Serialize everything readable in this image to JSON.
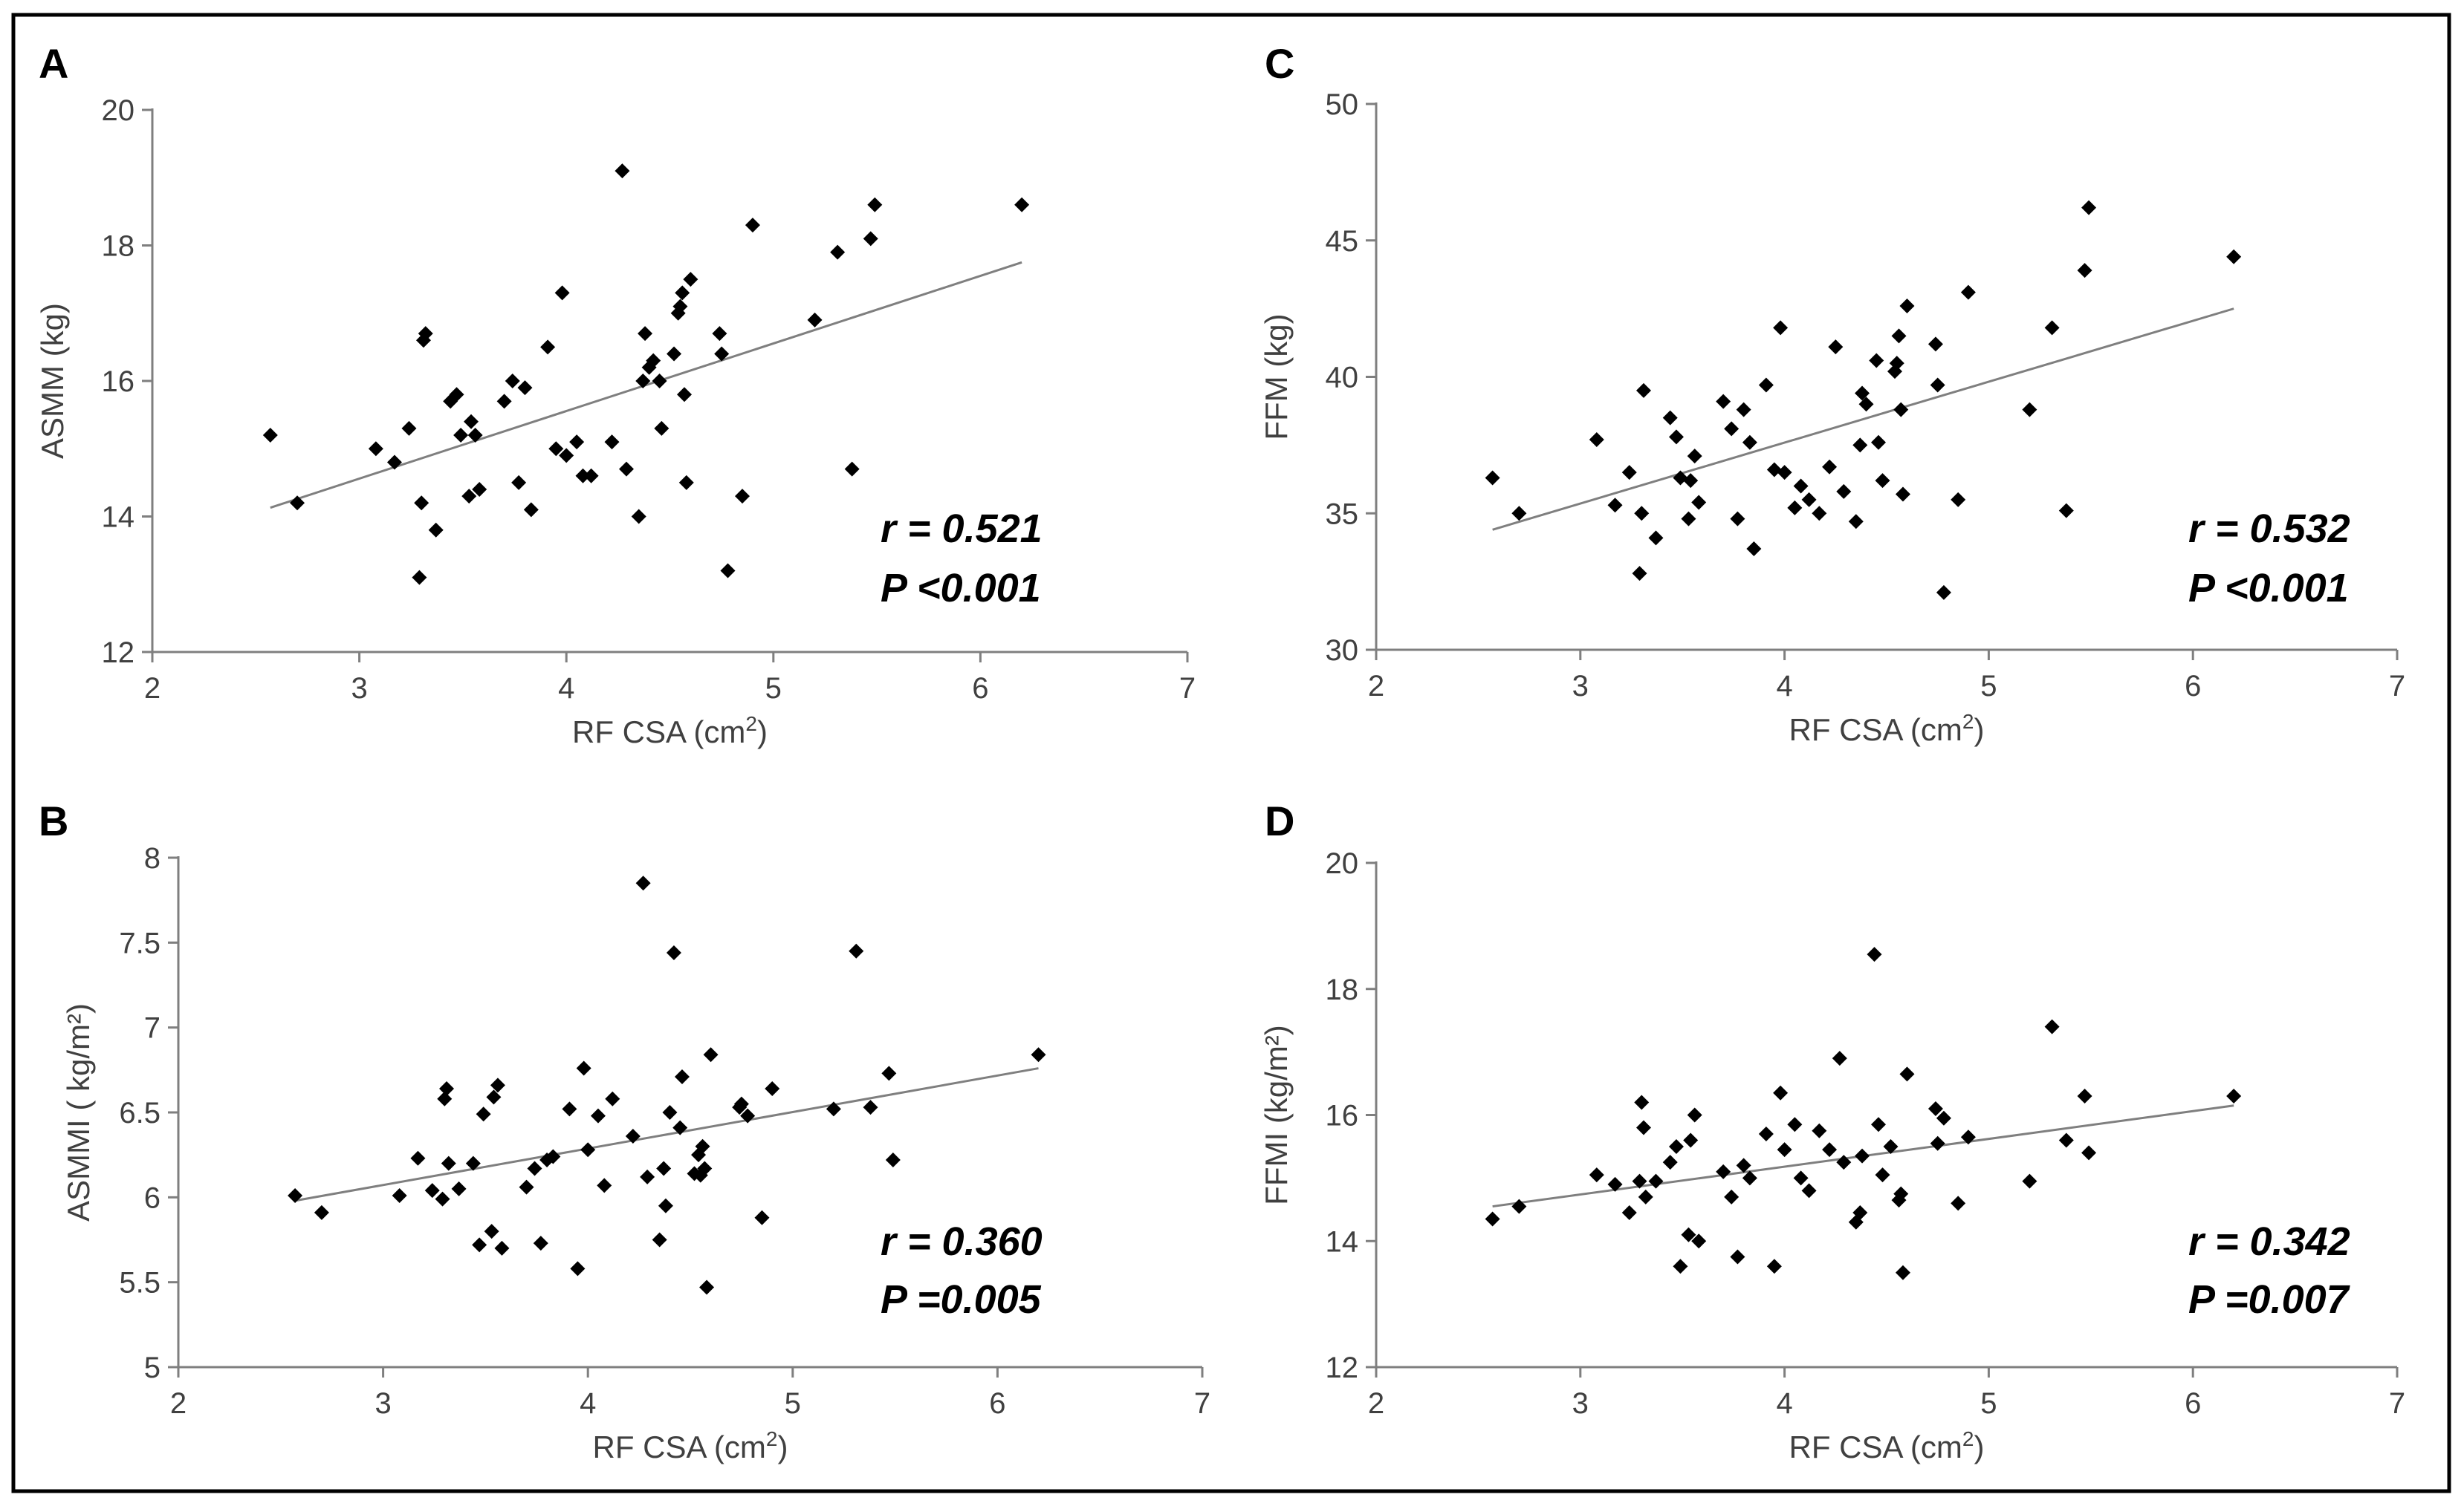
{
  "colors": {
    "axis": "#7f7f7f",
    "point": "#000000",
    "trend": "#7f7f7f",
    "text": "#404040",
    "frame": "#000000"
  },
  "chart_data": [
    {
      "panel": "A",
      "type": "scatter",
      "title": "",
      "xlabel_main": "RF CSA (cm",
      "xlabel_sup": "2",
      "xlabel_end": ")",
      "ylabel": "ASMM (kg)",
      "xlim": [
        2,
        7
      ],
      "ylim": [
        12,
        20
      ],
      "xticks": [
        "2",
        "3",
        "4",
        "5",
        "6",
        "7"
      ],
      "yticks": [
        "12",
        "14",
        "16",
        "18",
        "20"
      ],
      "trendline": {
        "x": [
          2.57,
          6.2
        ],
        "y": [
          14.13,
          17.75
        ]
      },
      "stats": {
        "r": "r = 0.521",
        "p": "P <0.001"
      },
      "points": [
        [
          2.57,
          15.2
        ],
        [
          2.7,
          14.2
        ],
        [
          3.08,
          15.0
        ],
        [
          3.17,
          14.8
        ],
        [
          3.24,
          15.3
        ],
        [
          3.29,
          13.1
        ],
        [
          3.3,
          14.2
        ],
        [
          3.31,
          16.6
        ],
        [
          3.32,
          16.7
        ],
        [
          3.37,
          13.8
        ],
        [
          3.44,
          15.7
        ],
        [
          3.47,
          15.8
        ],
        [
          3.49,
          15.2
        ],
        [
          3.53,
          14.3
        ],
        [
          3.54,
          15.4
        ],
        [
          3.56,
          15.2
        ],
        [
          3.58,
          14.4
        ],
        [
          3.7,
          15.7
        ],
        [
          3.74,
          16.0
        ],
        [
          3.77,
          14.5
        ],
        [
          3.8,
          15.9
        ],
        [
          3.83,
          14.1
        ],
        [
          3.91,
          16.5
        ],
        [
          3.95,
          15.0
        ],
        [
          3.98,
          17.3
        ],
        [
          4.0,
          14.9
        ],
        [
          4.05,
          15.1
        ],
        [
          4.08,
          14.6
        ],
        [
          4.12,
          14.6
        ],
        [
          4.22,
          15.1
        ],
        [
          4.27,
          19.1
        ],
        [
          4.29,
          14.7
        ],
        [
          4.35,
          14.0
        ],
        [
          4.37,
          16.0
        ],
        [
          4.38,
          16.7
        ],
        [
          4.4,
          16.2
        ],
        [
          4.42,
          16.3
        ],
        [
          4.45,
          16.0
        ],
        [
          4.46,
          15.3
        ],
        [
          4.52,
          16.4
        ],
        [
          4.54,
          17.0
        ],
        [
          4.55,
          17.1
        ],
        [
          4.56,
          17.3
        ],
        [
          4.57,
          15.8
        ],
        [
          4.58,
          14.5
        ],
        [
          4.6,
          17.5
        ],
        [
          4.74,
          16.7
        ],
        [
          4.75,
          16.4
        ],
        [
          4.78,
          13.2
        ],
        [
          4.85,
          14.3
        ],
        [
          4.9,
          18.3
        ],
        [
          5.2,
          16.9
        ],
        [
          5.31,
          17.9
        ],
        [
          5.38,
          14.7
        ],
        [
          5.47,
          18.1
        ],
        [
          5.49,
          18.6
        ],
        [
          6.2,
          18.6
        ]
      ]
    },
    {
      "panel": "B",
      "type": "scatter",
      "title": "",
      "xlabel_main": "RF CSA (cm",
      "xlabel_sup": "2",
      "xlabel_end": ")",
      "ylabel": "ASMMI ( kg/m²)",
      "xlim": [
        2,
        7
      ],
      "ylim": [
        5,
        8
      ],
      "xticks": [
        "2",
        "3",
        "4",
        "5",
        "6",
        "7"
      ],
      "yticks": [
        "5",
        "5.5",
        "6",
        "6.5",
        "7",
        "7.5",
        "8"
      ],
      "trendline": {
        "x": [
          2.57,
          6.2
        ],
        "y": [
          5.98,
          6.76
        ]
      },
      "stats": {
        "r": "r = 0.360",
        "p": "P =0.005"
      },
      "points": [
        [
          2.57,
          6.01
        ],
        [
          2.7,
          5.91
        ],
        [
          3.08,
          6.01
        ],
        [
          3.17,
          6.23
        ],
        [
          3.24,
          6.04
        ],
        [
          3.29,
          5.99
        ],
        [
          3.3,
          6.58
        ],
        [
          3.31,
          6.64
        ],
        [
          3.32,
          6.2
        ],
        [
          3.37,
          6.05
        ],
        [
          3.44,
          6.2
        ],
        [
          3.47,
          5.72
        ],
        [
          3.49,
          6.49
        ],
        [
          3.53,
          5.8
        ],
        [
          3.54,
          6.59
        ],
        [
          3.56,
          6.66
        ],
        [
          3.58,
          5.7
        ],
        [
          3.7,
          6.06
        ],
        [
          3.74,
          6.17
        ],
        [
          3.77,
          5.73
        ],
        [
          3.8,
          6.22
        ],
        [
          3.83,
          6.24
        ],
        [
          3.91,
          6.52
        ],
        [
          3.95,
          5.58
        ],
        [
          3.98,
          6.76
        ],
        [
          4.0,
          6.28
        ],
        [
          4.05,
          6.48
        ],
        [
          4.08,
          6.07
        ],
        [
          4.12,
          6.58
        ],
        [
          4.22,
          6.36
        ],
        [
          4.27,
          7.85
        ],
        [
          4.29,
          6.12
        ],
        [
          4.35,
          5.75
        ],
        [
          4.37,
          6.17
        ],
        [
          4.38,
          5.95
        ],
        [
          4.4,
          6.5
        ],
        [
          4.42,
          7.44
        ],
        [
          4.45,
          6.41
        ],
        [
          4.46,
          6.71
        ],
        [
          4.52,
          6.14
        ],
        [
          4.54,
          6.25
        ],
        [
          4.55,
          6.13
        ],
        [
          4.56,
          6.3
        ],
        [
          4.57,
          6.17
        ],
        [
          4.58,
          5.47
        ],
        [
          4.6,
          6.84
        ],
        [
          4.74,
          6.53
        ],
        [
          4.75,
          6.55
        ],
        [
          4.78,
          6.48
        ],
        [
          4.85,
          5.88
        ],
        [
          4.9,
          6.64
        ],
        [
          5.2,
          6.52
        ],
        [
          5.31,
          7.45
        ],
        [
          5.38,
          6.53
        ],
        [
          5.47,
          6.73
        ],
        [
          5.49,
          6.22
        ],
        [
          6.2,
          6.84
        ]
      ]
    },
    {
      "panel": "C",
      "type": "scatter",
      "title": "",
      "xlabel_main": "RF CSA (cm",
      "xlabel_sup": "2",
      "xlabel_end": ")",
      "ylabel": "FFM (kg)",
      "xlim": [
        2,
        7
      ],
      "ylim": [
        30,
        50
      ],
      "xticks": [
        "2",
        "3",
        "4",
        "5",
        "6",
        "7"
      ],
      "yticks": [
        "30",
        "35",
        "40",
        "45",
        "50"
      ],
      "trendline": {
        "x": [
          2.57,
          6.2
        ],
        "y": [
          34.4,
          42.5
        ]
      },
      "stats": {
        "r": "r = 0.532",
        "p": "P <0.001"
      },
      "points": [
        [
          2.57,
          36.3
        ],
        [
          2.7,
          35.0
        ],
        [
          3.08,
          37.7
        ],
        [
          3.17,
          35.3
        ],
        [
          3.24,
          36.5
        ],
        [
          3.29,
          32.8
        ],
        [
          3.3,
          35.0
        ],
        [
          3.31,
          39.5
        ],
        [
          3.37,
          34.1
        ],
        [
          3.44,
          38.5
        ],
        [
          3.47,
          37.8
        ],
        [
          3.49,
          36.3
        ],
        [
          3.53,
          34.8
        ],
        [
          3.54,
          36.2
        ],
        [
          3.56,
          37.1
        ],
        [
          3.58,
          35.4
        ],
        [
          3.7,
          39.1
        ],
        [
          3.74,
          38.1
        ],
        [
          3.77,
          34.8
        ],
        [
          3.8,
          38.8
        ],
        [
          3.83,
          37.6
        ],
        [
          3.85,
          33.7
        ],
        [
          3.91,
          39.7
        ],
        [
          3.95,
          36.6
        ],
        [
          3.98,
          41.8
        ],
        [
          4.0,
          36.5
        ],
        [
          4.05,
          35.2
        ],
        [
          4.08,
          36.0
        ],
        [
          4.12,
          35.5
        ],
        [
          4.17,
          35.0
        ],
        [
          4.22,
          36.7
        ],
        [
          4.25,
          41.1
        ],
        [
          4.29,
          35.8
        ],
        [
          4.35,
          34.7
        ],
        [
          4.37,
          37.5
        ],
        [
          4.38,
          39.4
        ],
        [
          4.4,
          39.0
        ],
        [
          4.45,
          40.6
        ],
        [
          4.46,
          37.6
        ],
        [
          4.48,
          36.2
        ],
        [
          4.54,
          40.2
        ],
        [
          4.55,
          40.5
        ],
        [
          4.56,
          41.5
        ],
        [
          4.57,
          38.8
        ],
        [
          4.58,
          35.7
        ],
        [
          4.6,
          42.6
        ],
        [
          4.74,
          41.2
        ],
        [
          4.75,
          39.7
        ],
        [
          4.78,
          32.1
        ],
        [
          4.85,
          35.5
        ],
        [
          4.9,
          43.1
        ],
        [
          5.2,
          38.8
        ],
        [
          5.31,
          41.8
        ],
        [
          5.38,
          35.1
        ],
        [
          5.47,
          43.9
        ],
        [
          5.49,
          46.2
        ],
        [
          6.2,
          44.4
        ]
      ]
    },
    {
      "panel": "D",
      "type": "scatter",
      "title": "",
      "xlabel_main": "RF CSA (cm",
      "xlabel_sup": "2",
      "xlabel_end": ")",
      "ylabel": "FFMI (kg/m²)",
      "xlim": [
        2,
        7
      ],
      "ylim": [
        12,
        20
      ],
      "xticks": [
        "2",
        "3",
        "4",
        "5",
        "6",
        "7"
      ],
      "yticks": [
        "12",
        "14",
        "16",
        "18",
        "20"
      ],
      "trendline": {
        "x": [
          2.57,
          6.2
        ],
        "y": [
          14.55,
          16.15
        ]
      },
      "stats": {
        "r": "r = 0.342",
        "p": "P =0.007"
      },
      "points": [
        [
          2.57,
          14.35
        ],
        [
          2.7,
          14.55
        ],
        [
          3.08,
          15.05
        ],
        [
          3.17,
          14.9
        ],
        [
          3.24,
          14.45
        ],
        [
          3.29,
          14.95
        ],
        [
          3.3,
          16.2
        ],
        [
          3.31,
          15.8
        ],
        [
          3.32,
          14.7
        ],
        [
          3.37,
          14.95
        ],
        [
          3.44,
          15.25
        ],
        [
          3.47,
          15.5
        ],
        [
          3.49,
          13.6
        ],
        [
          3.53,
          14.1
        ],
        [
          3.54,
          15.6
        ],
        [
          3.56,
          16.0
        ],
        [
          3.58,
          14.0
        ],
        [
          3.7,
          15.1
        ],
        [
          3.74,
          14.7
        ],
        [
          3.77,
          13.75
        ],
        [
          3.8,
          15.2
        ],
        [
          3.83,
          15.0
        ],
        [
          3.91,
          15.7
        ],
        [
          3.95,
          13.6
        ],
        [
          3.98,
          16.35
        ],
        [
          4.0,
          15.45
        ],
        [
          4.05,
          15.85
        ],
        [
          4.08,
          15.0
        ],
        [
          4.12,
          14.8
        ],
        [
          4.17,
          15.75
        ],
        [
          4.22,
          15.45
        ],
        [
          4.27,
          16.9
        ],
        [
          4.29,
          15.25
        ],
        [
          4.35,
          14.3
        ],
        [
          4.37,
          14.45
        ],
        [
          4.38,
          15.35
        ],
        [
          4.44,
          18.55
        ],
        [
          4.46,
          15.85
        ],
        [
          4.48,
          15.05
        ],
        [
          4.52,
          15.5
        ],
        [
          4.56,
          14.65
        ],
        [
          4.57,
          14.75
        ],
        [
          4.58,
          13.5
        ],
        [
          4.6,
          16.65
        ],
        [
          4.74,
          16.1
        ],
        [
          4.75,
          15.55
        ],
        [
          4.78,
          15.95
        ],
        [
          4.85,
          14.6
        ],
        [
          4.9,
          15.65
        ],
        [
          5.2,
          14.95
        ],
        [
          5.31,
          17.4
        ],
        [
          5.38,
          15.6
        ],
        [
          5.47,
          16.3
        ],
        [
          5.49,
          15.4
        ],
        [
          6.2,
          16.3
        ]
      ]
    }
  ]
}
